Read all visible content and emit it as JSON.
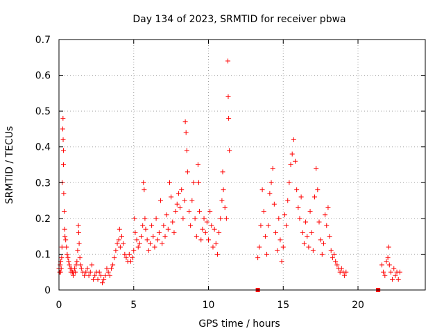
{
  "chart_data": {
    "type": "scatter",
    "title": "Day 134 of 2023, SRMTID for receiver pbwa",
    "xlabel": "GPS time / hours",
    "ylabel": "SRMTID / TECUs",
    "xlim": [
      0,
      24.5
    ],
    "ylim": [
      0,
      0.7
    ],
    "x_ticks": [
      0,
      5,
      10,
      15,
      20
    ],
    "x_tick_labels": [
      "0",
      "5",
      "10",
      "15",
      "20"
    ],
    "y_ticks": [
      0,
      0.1,
      0.2,
      0.3,
      0.4,
      0.5,
      0.6,
      0.7
    ],
    "y_tick_labels": [
      "0",
      "0.1",
      "0.2",
      "0.3",
      "0.4",
      "0.5",
      "0.6",
      "0.7"
    ],
    "grid": true,
    "marker": "plus",
    "color": "#ff0000",
    "square_marker_points": [
      {
        "x": 13.3,
        "y": 0.0
      },
      {
        "x": 21.35,
        "y": 0.0
      }
    ],
    "series": [
      {
        "name": "SRMTID",
        "points": [
          [
            0.0,
            0.06
          ],
          [
            0.05,
            0.05
          ],
          [
            0.08,
            0.07
          ],
          [
            0.1,
            0.05
          ],
          [
            0.12,
            0.08
          ],
          [
            0.15,
            0.06
          ],
          [
            0.18,
            0.09
          ],
          [
            0.2,
            0.12
          ],
          [
            0.22,
            0.3
          ],
          [
            0.25,
            0.45
          ],
          [
            0.27,
            0.48
          ],
          [
            0.28,
            0.42
          ],
          [
            0.3,
            0.39
          ],
          [
            0.3,
            0.35
          ],
          [
            0.32,
            0.27
          ],
          [
            0.35,
            0.22
          ],
          [
            0.38,
            0.17
          ],
          [
            0.4,
            0.15
          ],
          [
            0.45,
            0.14
          ],
          [
            0.5,
            0.12
          ],
          [
            0.55,
            0.1
          ],
          [
            0.6,
            0.09
          ],
          [
            0.65,
            0.08
          ],
          [
            0.7,
            0.07
          ],
          [
            0.75,
            0.06
          ],
          [
            0.8,
            0.05
          ],
          [
            0.85,
            0.06
          ],
          [
            0.9,
            0.05
          ],
          [
            0.95,
            0.04
          ],
          [
            1.0,
            0.05
          ],
          [
            1.05,
            0.06
          ],
          [
            1.1,
            0.05
          ],
          [
            1.15,
            0.07
          ],
          [
            1.2,
            0.08
          ],
          [
            1.25,
            0.11
          ],
          [
            1.3,
            0.18
          ],
          [
            1.32,
            0.16
          ],
          [
            1.35,
            0.13
          ],
          [
            1.4,
            0.09
          ],
          [
            1.45,
            0.07
          ],
          [
            1.5,
            0.06
          ],
          [
            1.6,
            0.05
          ],
          [
            1.7,
            0.04
          ],
          [
            1.8,
            0.05
          ],
          [
            1.9,
            0.06
          ],
          [
            2.0,
            0.04
          ],
          [
            2.1,
            0.05
          ],
          [
            2.2,
            0.07
          ],
          [
            2.3,
            0.03
          ],
          [
            2.4,
            0.04
          ],
          [
            2.5,
            0.05
          ],
          [
            2.6,
            0.03
          ],
          [
            2.7,
            0.05
          ],
          [
            2.8,
            0.04
          ],
          [
            2.9,
            0.02
          ],
          [
            3.0,
            0.03
          ],
          [
            3.1,
            0.04
          ],
          [
            3.2,
            0.06
          ],
          [
            3.3,
            0.05
          ],
          [
            3.4,
            0.04
          ],
          [
            3.5,
            0.06
          ],
          [
            3.6,
            0.07
          ],
          [
            3.7,
            0.09
          ],
          [
            3.8,
            0.11
          ],
          [
            3.9,
            0.13
          ],
          [
            4.0,
            0.14
          ],
          [
            4.05,
            0.17
          ],
          [
            4.1,
            0.12
          ],
          [
            4.2,
            0.15
          ],
          [
            4.3,
            0.13
          ],
          [
            4.4,
            0.1
          ],
          [
            4.5,
            0.09
          ],
          [
            4.6,
            0.08
          ],
          [
            4.7,
            0.1
          ],
          [
            4.8,
            0.08
          ],
          [
            4.9,
            0.09
          ],
          [
            5.0,
            0.11
          ],
          [
            5.05,
            0.2
          ],
          [
            5.1,
            0.16
          ],
          [
            5.2,
            0.14
          ],
          [
            5.3,
            0.12
          ],
          [
            5.4,
            0.13
          ],
          [
            5.5,
            0.15
          ],
          [
            5.6,
            0.18
          ],
          [
            5.65,
            0.3
          ],
          [
            5.7,
            0.28
          ],
          [
            5.75,
            0.2
          ],
          [
            5.8,
            0.17
          ],
          [
            5.9,
            0.14
          ],
          [
            6.0,
            0.11
          ],
          [
            6.1,
            0.13
          ],
          [
            6.2,
            0.18
          ],
          [
            6.3,
            0.15
          ],
          [
            6.4,
            0.12
          ],
          [
            6.5,
            0.2
          ],
          [
            6.6,
            0.14
          ],
          [
            6.7,
            0.16
          ],
          [
            6.8,
            0.25
          ],
          [
            6.9,
            0.13
          ],
          [
            7.0,
            0.18
          ],
          [
            7.1,
            0.15
          ],
          [
            7.2,
            0.21
          ],
          [
            7.3,
            0.17
          ],
          [
            7.4,
            0.3
          ],
          [
            7.5,
            0.26
          ],
          [
            7.6,
            0.19
          ],
          [
            7.7,
            0.16
          ],
          [
            7.8,
            0.22
          ],
          [
            7.9,
            0.24
          ],
          [
            8.0,
            0.27
          ],
          [
            8.1,
            0.23
          ],
          [
            8.2,
            0.28
          ],
          [
            8.3,
            0.2
          ],
          [
            8.4,
            0.25
          ],
          [
            8.45,
            0.47
          ],
          [
            8.5,
            0.44
          ],
          [
            8.55,
            0.39
          ],
          [
            8.6,
            0.33
          ],
          [
            8.7,
            0.22
          ],
          [
            8.8,
            0.18
          ],
          [
            8.9,
            0.25
          ],
          [
            9.0,
            0.3
          ],
          [
            9.1,
            0.2
          ],
          [
            9.2,
            0.15
          ],
          [
            9.3,
            0.35
          ],
          [
            9.35,
            0.3
          ],
          [
            9.4,
            0.22
          ],
          [
            9.5,
            0.14
          ],
          [
            9.6,
            0.17
          ],
          [
            9.7,
            0.2
          ],
          [
            9.8,
            0.16
          ],
          [
            9.9,
            0.19
          ],
          [
            10.0,
            0.14
          ],
          [
            10.1,
            0.22
          ],
          [
            10.2,
            0.18
          ],
          [
            10.3,
            0.12
          ],
          [
            10.4,
            0.17
          ],
          [
            10.5,
            0.13
          ],
          [
            10.6,
            0.1
          ],
          [
            10.7,
            0.16
          ],
          [
            10.8,
            0.2
          ],
          [
            10.9,
            0.25
          ],
          [
            10.95,
            0.33
          ],
          [
            11.0,
            0.28
          ],
          [
            11.1,
            0.23
          ],
          [
            11.2,
            0.2
          ],
          [
            11.3,
            0.64
          ],
          [
            11.32,
            0.54
          ],
          [
            11.35,
            0.48
          ],
          [
            11.4,
            0.39
          ],
          [
            13.3,
            0.09
          ],
          [
            13.4,
            0.12
          ],
          [
            13.5,
            0.18
          ],
          [
            13.6,
            0.28
          ],
          [
            13.7,
            0.22
          ],
          [
            13.8,
            0.15
          ],
          [
            13.9,
            0.1
          ],
          [
            14.0,
            0.18
          ],
          [
            14.1,
            0.27
          ],
          [
            14.2,
            0.3
          ],
          [
            14.3,
            0.34
          ],
          [
            14.4,
            0.24
          ],
          [
            14.5,
            0.16
          ],
          [
            14.6,
            0.11
          ],
          [
            14.7,
            0.2
          ],
          [
            14.8,
            0.14
          ],
          [
            14.9,
            0.08
          ],
          [
            15.0,
            0.12
          ],
          [
            15.1,
            0.21
          ],
          [
            15.2,
            0.18
          ],
          [
            15.3,
            0.25
          ],
          [
            15.4,
            0.3
          ],
          [
            15.5,
            0.35
          ],
          [
            15.6,
            0.38
          ],
          [
            15.7,
            0.42
          ],
          [
            15.8,
            0.36
          ],
          [
            15.9,
            0.28
          ],
          [
            16.0,
            0.23
          ],
          [
            16.1,
            0.2
          ],
          [
            16.2,
            0.26
          ],
          [
            16.3,
            0.16
          ],
          [
            16.4,
            0.13
          ],
          [
            16.5,
            0.19
          ],
          [
            16.6,
            0.15
          ],
          [
            16.7,
            0.12
          ],
          [
            16.8,
            0.22
          ],
          [
            16.9,
            0.16
          ],
          [
            17.0,
            0.11
          ],
          [
            17.1,
            0.26
          ],
          [
            17.2,
            0.34
          ],
          [
            17.3,
            0.28
          ],
          [
            17.4,
            0.19
          ],
          [
            17.5,
            0.14
          ],
          [
            17.6,
            0.1
          ],
          [
            17.7,
            0.13
          ],
          [
            17.8,
            0.21
          ],
          [
            17.9,
            0.18
          ],
          [
            18.0,
            0.23
          ],
          [
            18.1,
            0.15
          ],
          [
            18.2,
            0.11
          ],
          [
            18.3,
            0.09
          ],
          [
            18.4,
            0.1
          ],
          [
            18.5,
            0.08
          ],
          [
            18.6,
            0.07
          ],
          [
            18.7,
            0.06
          ],
          [
            18.8,
            0.05
          ],
          [
            18.9,
            0.06
          ],
          [
            19.0,
            0.05
          ],
          [
            19.1,
            0.04
          ],
          [
            19.2,
            0.05
          ],
          [
            21.6,
            0.07
          ],
          [
            21.7,
            0.05
          ],
          [
            21.8,
            0.04
          ],
          [
            21.9,
            0.08
          ],
          [
            22.0,
            0.09
          ],
          [
            22.05,
            0.12
          ],
          [
            22.1,
            0.07
          ],
          [
            22.2,
            0.05
          ],
          [
            22.3,
            0.03
          ],
          [
            22.4,
            0.06
          ],
          [
            22.5,
            0.04
          ],
          [
            22.6,
            0.05
          ],
          [
            22.7,
            0.03
          ],
          [
            22.8,
            0.05
          ]
        ]
      }
    ]
  }
}
